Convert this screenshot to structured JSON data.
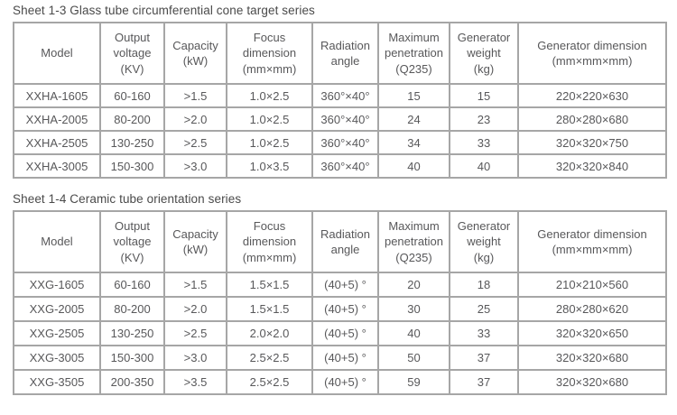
{
  "tables": [
    {
      "title": "Sheet 1-3 Glass tube circumferential cone target series",
      "headers": [
        "Model",
        "Output\nvoltage\n(KV)",
        "Capacity\n(kW)",
        "Focus\ndimension\n(mm×mm)",
        "Radiation\nangle",
        "Maximum\npenetration\n(Q235)",
        "Generator\nweight\n(kg)",
        "Generator dimension\n(mm×mm×mm)"
      ],
      "rows": [
        [
          "XXHA-1605",
          "60-160",
          ">1.5",
          "1.0×2.5",
          "360°×40°",
          "15",
          "15",
          "220×220×630"
        ],
        [
          "XXHA-2005",
          "80-200",
          ">2.0",
          "1.0×2.5",
          "360°×40°",
          "24",
          "23",
          "280×280×680"
        ],
        [
          "XXHA-2505",
          "130-250",
          ">2.5",
          "1.0×2.5",
          "360°×40°",
          "34",
          "33",
          "320×320×750"
        ],
        [
          "XXHA-3005",
          "150-300",
          ">3.0",
          "1.0×3.5",
          "360°×40°",
          "40",
          "40",
          "320×320×840"
        ]
      ]
    },
    {
      "title": "Sheet 1-4 Ceramic tube orientation series",
      "headers": [
        "Model",
        "Output\nvoltage\n(KV)",
        "Capacity\n(kW)",
        "Focus\ndimension\n(mm×mm)",
        "Radiation\nangle",
        "Maximum\npenetration\n(Q235)",
        "Generator\nweight\n(kg)",
        "Generator dimension\n(mm×mm×mm)"
      ],
      "rows": [
        [
          "XXG-1605",
          "60-160",
          ">1.5",
          "1.5×1.5",
          "(40+5) °",
          "20",
          "18",
          "210×210×560"
        ],
        [
          "XXG-2005",
          "80-200",
          ">2.0",
          "1.5×1.5",
          "(40+5) °",
          "30",
          "25",
          "280×280×620"
        ],
        [
          "XXG-2505",
          "130-250",
          ">2.5",
          "2.0×2.0",
          "(40+5) °",
          "40",
          "33",
          "320×320×650"
        ],
        [
          "XXG-3005",
          "150-300",
          ">3.0",
          "2.5×2.5",
          "(40+5) °",
          "50",
          "37",
          "320×320×680"
        ],
        [
          "XXG-3505",
          "200-350",
          ">3.5",
          "2.5×2.5",
          "(40+5) °",
          "59",
          "37",
          "320×320×680"
        ]
      ]
    }
  ],
  "colors": {
    "text": "#58585a",
    "title_text": "#4a4a4a",
    "border": "#a6a6a6",
    "background": "#ffffff"
  }
}
